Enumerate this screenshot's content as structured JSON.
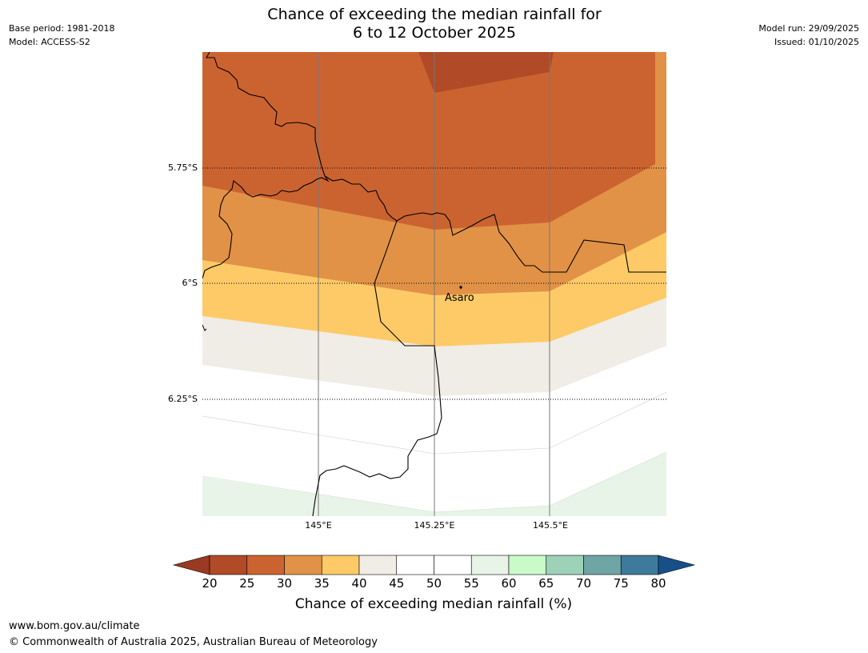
{
  "header": {
    "base_period": "Base period: 1981-2018",
    "model": "Model: ACCESS-S2",
    "model_run": "Model run: 29/09/2025",
    "issued": "Issued: 01/10/2025",
    "title_line1": "Chance of exceeding the median rainfall for",
    "title_line2": "6 to 12 October 2025"
  },
  "map": {
    "lat_labels": [
      "5.75°S",
      "6°S",
      "6.25°S"
    ],
    "lon_labels": [
      "145°E",
      "145.25°E",
      "145.5°E"
    ],
    "place": "Asaro",
    "fill_colors": {
      "p20_25": "#b04a27",
      "p25_30": "#cb6331",
      "p30_35": "#e19246",
      "p35_40": "#fdca67",
      "p40_45": "#f0ece6",
      "p45_55": "#ffffff",
      "p55_60": "#e8f4e8"
    }
  },
  "colorbar": {
    "title": "Chance of exceeding median rainfall (%)",
    "ticks": [
      "20",
      "25",
      "30",
      "35",
      "40",
      "45",
      "50",
      "55",
      "60",
      "65",
      "70",
      "75",
      "80"
    ],
    "colors": [
      "#b04a27",
      "#cb6331",
      "#e19246",
      "#fdca67",
      "#f0ece6",
      "#ffffff",
      "#ffffff",
      "#e8f4e8",
      "#c8fbc8",
      "#9dd2b8",
      "#6fa5a5",
      "#3e7a9b"
    ],
    "low_extend_color": "#9a3a22",
    "high_extend_color": "#175089"
  },
  "footer": {
    "url": "www.bom.gov.au/climate",
    "copyright": "© Commonwealth of Australia 2025, Australian Bureau of Meteorology"
  }
}
